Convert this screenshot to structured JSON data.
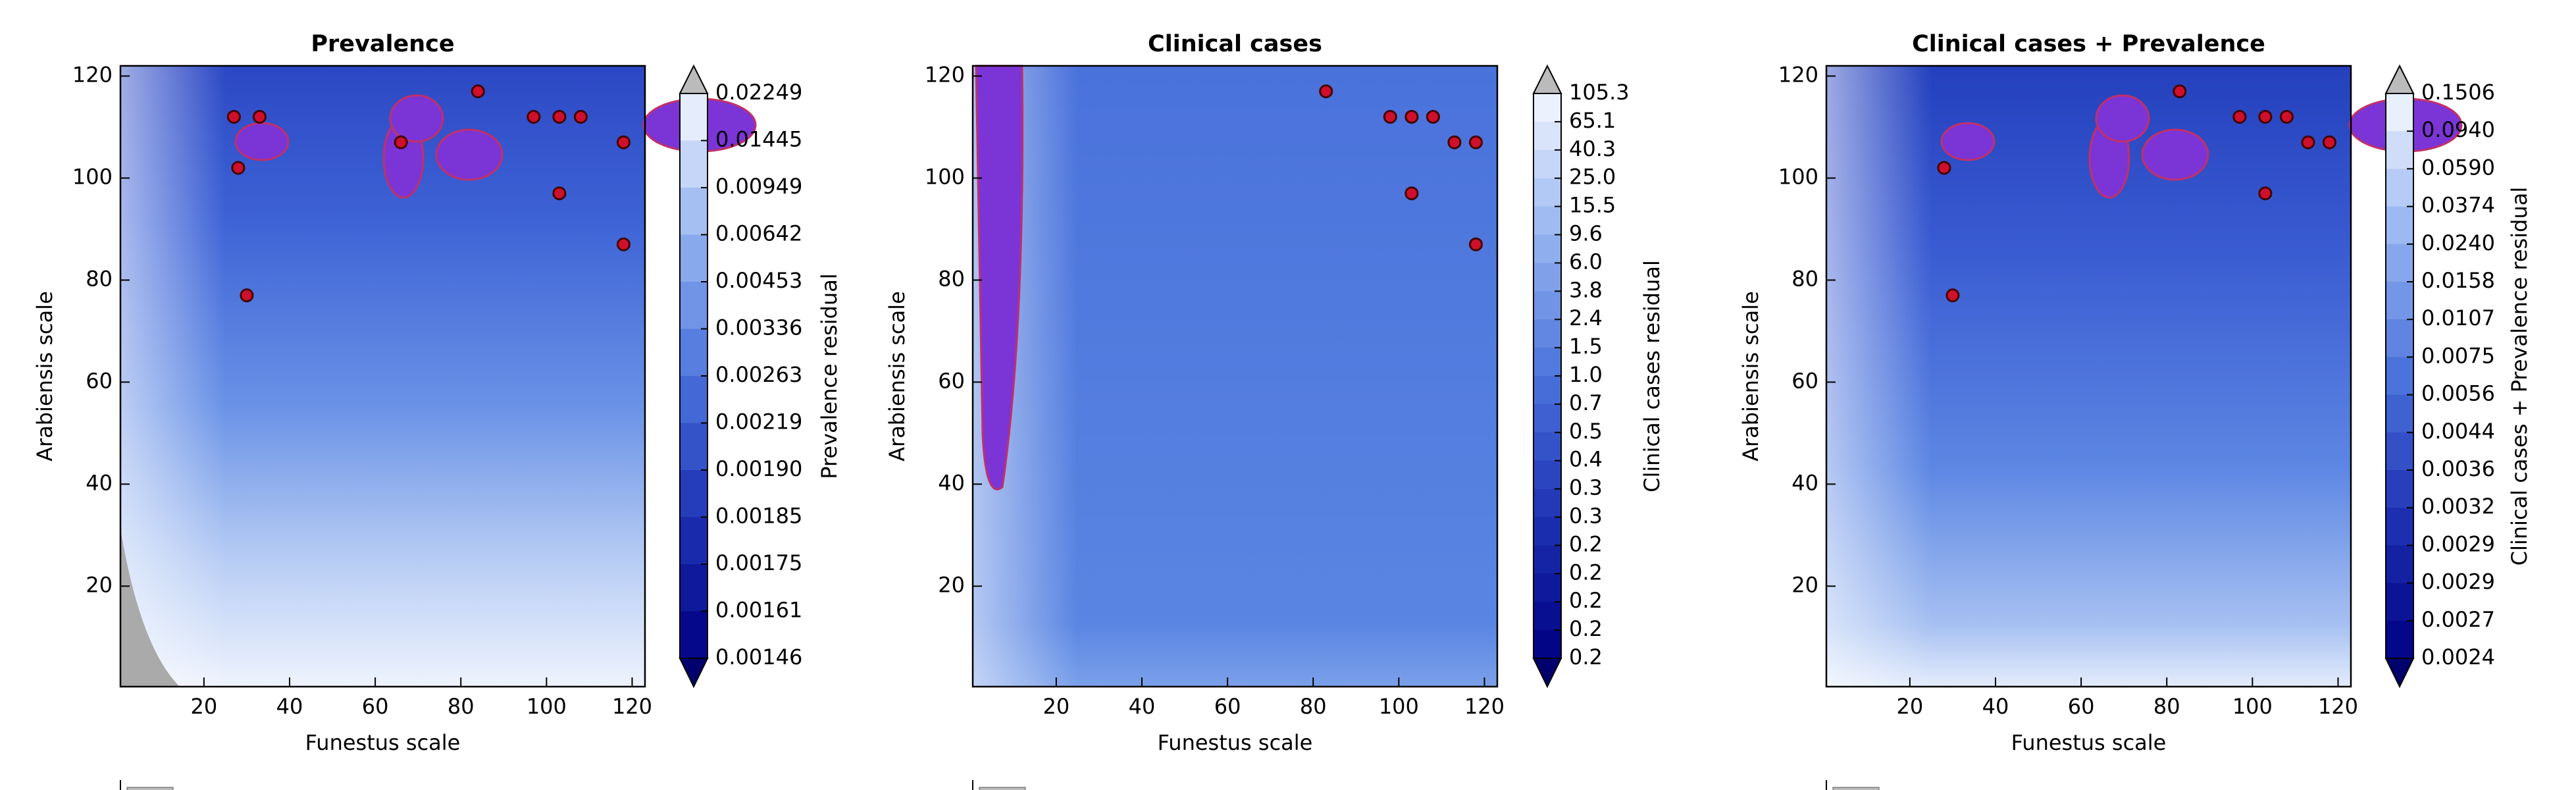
{
  "chart_data": [
    {
      "type": "contour",
      "title": "Prevalence",
      "xlabel": "Funestus scale",
      "ylabel": "Arabiensis scale",
      "xlim": [
        0.5,
        123
      ],
      "ylim": [
        0.3,
        122
      ],
      "xticks": [
        20,
        40,
        60,
        80,
        100,
        120
      ],
      "yticks": [
        20,
        40,
        60,
        80,
        100,
        120
      ],
      "colorbar_label": "Prevalence residual",
      "colorbar_levels": [
        {
          "value": 0.02249,
          "label": "0.02249"
        },
        {
          "value": 0.01445,
          "label": "0.01445"
        },
        {
          "value": 0.00949,
          "label": "0.00949"
        },
        {
          "value": 0.00642,
          "label": "0.00642"
        },
        {
          "value": 0.00453,
          "label": "0.00453"
        },
        {
          "value": 0.00336,
          "label": "0.00336"
        },
        {
          "value": 0.00263,
          "label": "0.00263"
        },
        {
          "value": 0.00219,
          "label": "0.00219"
        },
        {
          "value": 0.0019,
          "label": "0.00190"
        },
        {
          "value": 0.00185,
          "label": "0.00185"
        },
        {
          "value": 0.00175,
          "label": "0.00175"
        },
        {
          "value": 0.00161,
          "label": "0.00161"
        },
        {
          "value": 0.00146,
          "label": "0.00146"
        }
      ],
      "points": {
        "color": "#d0102a",
        "x": [
          27,
          33,
          28,
          66,
          84,
          97,
          103,
          108,
          118,
          103,
          118,
          30
        ],
        "y": [
          112,
          112,
          102,
          107,
          117,
          112,
          112,
          112,
          107,
          97,
          87,
          77
        ]
      }
    },
    {
      "type": "contour",
      "title": "Clinical cases",
      "xlabel": "Funestus scale",
      "ylabel": "Arabiensis scale",
      "xlim": [
        0.5,
        123
      ],
      "ylim": [
        0.3,
        122
      ],
      "xticks": [
        20,
        40,
        60,
        80,
        100,
        120
      ],
      "yticks": [
        20,
        40,
        60,
        80,
        100,
        120
      ],
      "colorbar_label": "Clinical cases residual",
      "colorbar_levels": [
        {
          "value": 105.3,
          "label": "105.3"
        },
        {
          "value": 65.1,
          "label": "65.1"
        },
        {
          "value": 40.3,
          "label": "40.3"
        },
        {
          "value": 25.0,
          "label": "25.0"
        },
        {
          "value": 15.5,
          "label": "15.5"
        },
        {
          "value": 9.6,
          "label": "9.6"
        },
        {
          "value": 6.0,
          "label": "6.0"
        },
        {
          "value": 3.8,
          "label": "3.8"
        },
        {
          "value": 2.4,
          "label": "2.4"
        },
        {
          "value": 1.5,
          "label": "1.5"
        },
        {
          "value": 1.0,
          "label": "1.0"
        },
        {
          "value": 0.7,
          "label": "0.7"
        },
        {
          "value": 0.5,
          "label": "0.5"
        },
        {
          "value": 0.4,
          "label": "0.4"
        },
        {
          "value": 0.3,
          "label": "0.3"
        },
        {
          "value": 0.3,
          "label": "0.3"
        },
        {
          "value": 0.2,
          "label": "0.2"
        },
        {
          "value": 0.2,
          "label": "0.2"
        },
        {
          "value": 0.2,
          "label": "0.2"
        },
        {
          "value": 0.2,
          "label": "0.2"
        },
        {
          "value": 0.2,
          "label": "0.2"
        }
      ],
      "points": {
        "color": "#d0102a",
        "x": [
          83,
          98,
          103,
          108,
          113,
          118,
          103,
          118
        ],
        "y": [
          117,
          112,
          112,
          112,
          107,
          107,
          97,
          87
        ]
      }
    },
    {
      "type": "contour",
      "title": "Clinical cases + Prevalence",
      "xlabel": "Funestus scale",
      "ylabel": "Arabiensis scale",
      "xlim": [
        0.5,
        123
      ],
      "ylim": [
        0.3,
        122
      ],
      "xticks": [
        20,
        40,
        60,
        80,
        100,
        120
      ],
      "yticks": [
        20,
        40,
        60,
        80,
        100,
        120
      ],
      "colorbar_label": "Clinical cases + Prevalence residual",
      "colorbar_levels": [
        {
          "value": 0.1506,
          "label": "0.1506"
        },
        {
          "value": 0.094,
          "label": "0.0940"
        },
        {
          "value": 0.059,
          "label": "0.0590"
        },
        {
          "value": 0.0374,
          "label": "0.0374"
        },
        {
          "value": 0.024,
          "label": "0.0240"
        },
        {
          "value": 0.0158,
          "label": "0.0158"
        },
        {
          "value": 0.0107,
          "label": "0.0107"
        },
        {
          "value": 0.0075,
          "label": "0.0075"
        },
        {
          "value": 0.0056,
          "label": "0.0056"
        },
        {
          "value": 0.0044,
          "label": "0.0044"
        },
        {
          "value": 0.0036,
          "label": "0.0036"
        },
        {
          "value": 0.0032,
          "label": "0.0032"
        },
        {
          "value": 0.0029,
          "label": "0.0029"
        },
        {
          "value": 0.0029,
          "label": "0.0029"
        },
        {
          "value": 0.0027,
          "label": "0.0027"
        },
        {
          "value": 0.0024,
          "label": "0.0024"
        }
      ],
      "points": {
        "color": "#d0102a",
        "x": [
          83,
          97,
          103,
          108,
          113,
          118,
          103,
          30,
          28
        ],
        "y": [
          117,
          112,
          112,
          112,
          107,
          107,
          97,
          77,
          102
        ]
      }
    }
  ]
}
